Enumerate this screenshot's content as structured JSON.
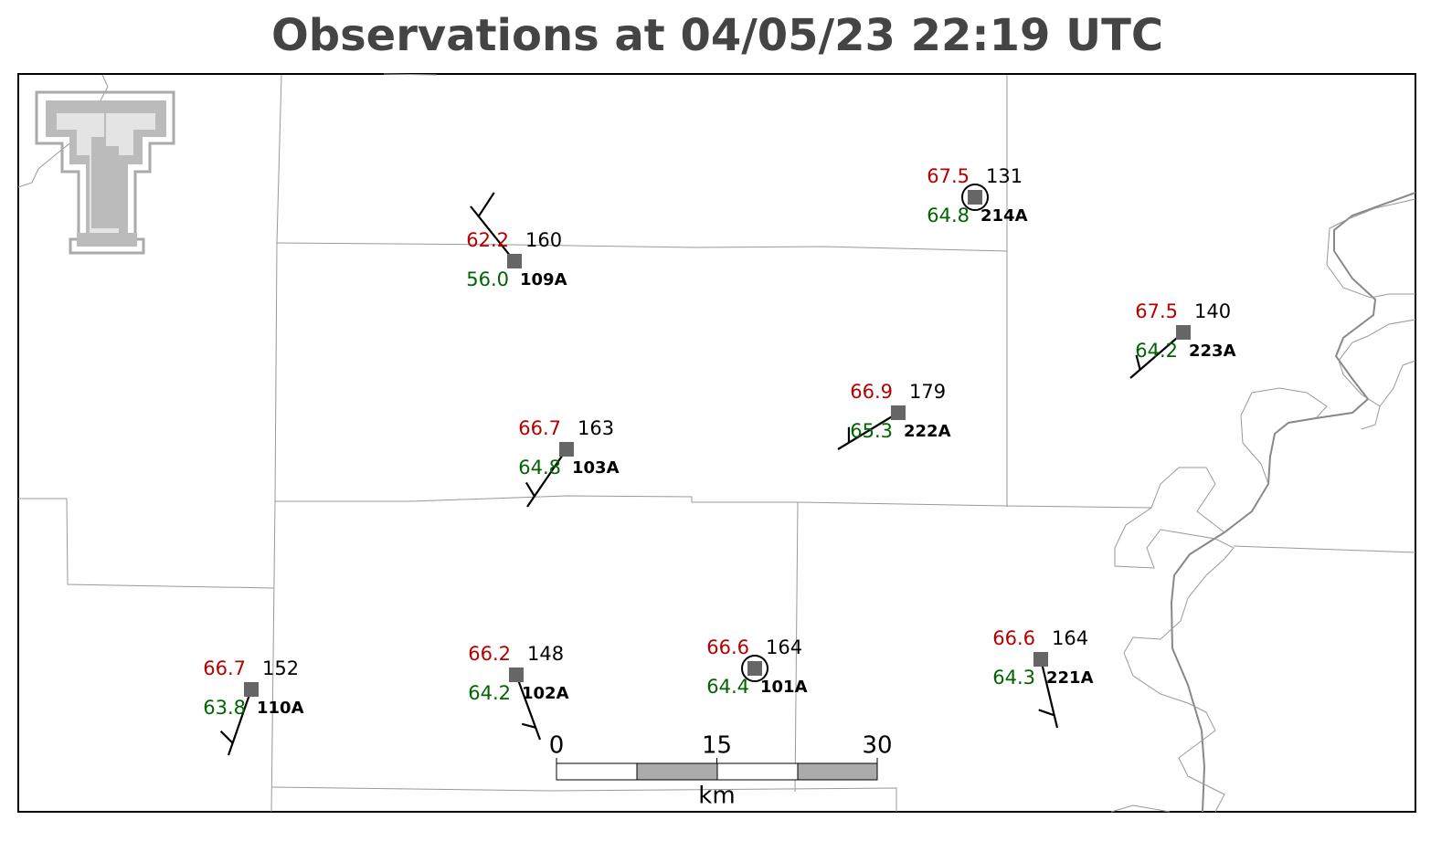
{
  "title": "Observations at 04/05/23 22:19 UTC",
  "stations": [
    {
      "temperature": "62.2",
      "pressure": "160",
      "dewpoint": "56.0",
      "id": "109A"
    },
    {
      "temperature": "67.5",
      "pressure": "131",
      "dewpoint": "64.8",
      "id": "214A"
    },
    {
      "temperature": "67.5",
      "pressure": "140",
      "dewpoint": "64.2",
      "id": "223A"
    },
    {
      "temperature": "66.9",
      "pressure": "179",
      "dewpoint": "65.3",
      "id": "222A"
    },
    {
      "temperature": "66.7",
      "pressure": "163",
      "dewpoint": "64.8",
      "id": "103A"
    },
    {
      "temperature": "66.7",
      "pressure": "152",
      "dewpoint": "63.8",
      "id": "110A"
    },
    {
      "temperature": "66.2",
      "pressure": "148",
      "dewpoint": "64.2",
      "id": "102A"
    },
    {
      "temperature": "66.6",
      "pressure": "164",
      "dewpoint": "64.4",
      "id": "101A"
    },
    {
      "temperature": "66.6",
      "pressure": "164",
      "dewpoint": "64.3",
      "id": "221A"
    }
  ],
  "scale_bar": {
    "ticks": [
      "0",
      "15",
      "30"
    ],
    "unit": "km"
  }
}
